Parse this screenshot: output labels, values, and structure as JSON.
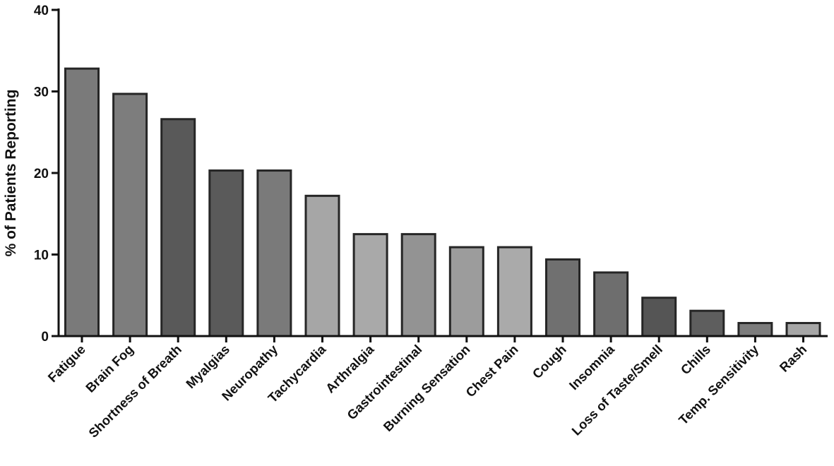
{
  "chart_data": {
    "type": "bar",
    "title": "",
    "xlabel": "",
    "ylabel": "% of Patients Reporting",
    "ylim": [
      0,
      40
    ],
    "yticks": [
      0,
      10,
      20,
      30,
      40
    ],
    "grid": false,
    "categories": [
      "Fatigue",
      "Brain Fog",
      "Shortness of Breath",
      "Myalgias",
      "Neuropathy",
      "Tachycardia",
      "Arthralgia",
      "Gastrointestinal",
      "Burning Sensation",
      "Chest Pain",
      "Cough",
      "Insomnia",
      "Loss of Taste/Smell",
      "Chills",
      "Temp. Sensitivity",
      "Rash"
    ],
    "values": [
      32.8,
      29.7,
      26.6,
      20.3,
      20.3,
      17.2,
      12.5,
      12.5,
      10.9,
      10.9,
      9.4,
      7.8,
      4.7,
      3.1,
      1.6,
      1.6
    ],
    "bar_colors": [
      "#7a7a7a",
      "#7d7d7d",
      "#595959",
      "#5a5a5a",
      "#7a7a7a",
      "#a6a6a6",
      "#a9a9a9",
      "#939393",
      "#9c9c9c",
      "#aaaaaa",
      "#707070",
      "#6e6e6e",
      "#555555",
      "#5e5e5e",
      "#7c7c7c",
      "#a6a6a6"
    ]
  }
}
